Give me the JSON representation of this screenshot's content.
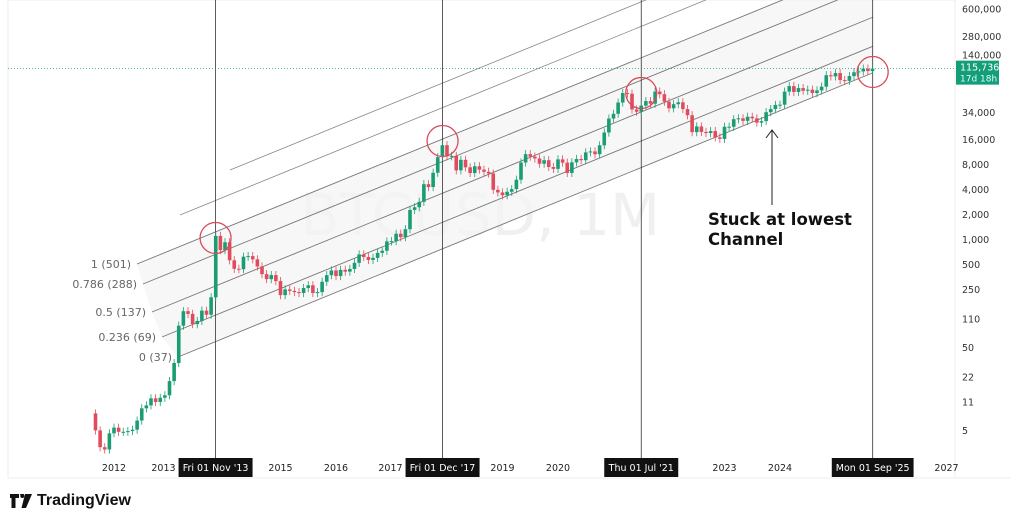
{
  "brand": {
    "name": "TradingView"
  },
  "chart_data": {
    "type": "candlestick",
    "watermark": "BTCUSD, 1M",
    "y_scale": "log",
    "y_ticks": [
      600000,
      280000,
      140000,
      34000,
      16000,
      8000,
      4000,
      2000,
      1000,
      500,
      250,
      110,
      50,
      22,
      11,
      5
    ],
    "y_tick_labels": [
      "600,000",
      "280,000",
      "140,000",
      "34,000",
      "16,000",
      "8,000",
      "4,000",
      "2,000",
      "1,000",
      "500",
      "250",
      "110",
      "50",
      "22",
      "11",
      "5"
    ],
    "x_ticks": [
      {
        "year": 2012,
        "label": "2012"
      },
      {
        "year": 2013,
        "label": "2013"
      },
      {
        "year": 2015,
        "label": "2015"
      },
      {
        "year": 2016,
        "label": "2016"
      },
      {
        "year": 2017,
        "label": "2017"
      },
      {
        "year": 2019,
        "label": "2019"
      },
      {
        "year": 2020,
        "label": "2020"
      },
      {
        "year": 2023,
        "label": "2023"
      },
      {
        "year": 2024,
        "label": "2024"
      },
      {
        "year": 2027,
        "label": "2027"
      }
    ],
    "start_month": "2011-09",
    "monthly_close": [
      5.1,
      3.2,
      3.0,
      4.7,
      5.5,
      4.9,
      4.9,
      5.0,
      5.2,
      6.7,
      9.4,
      10.2,
      12.4,
      11.2,
      12.6,
      13.5,
      20,
      33,
      93,
      139,
      129,
      97,
      106,
      141,
      126,
      204,
      1120,
      755,
      940,
      570,
      450,
      445,
      630,
      640,
      585,
      480,
      388,
      338,
      378,
      320,
      217,
      254,
      244,
      236,
      230,
      264,
      285,
      230,
      236,
      314,
      377,
      430,
      368,
      437,
      416,
      448,
      531,
      670,
      624,
      575,
      609,
      700,
      742,
      963,
      970,
      1190,
      1080,
      1350,
      2300,
      2480,
      2880,
      4700,
      4340,
      6450,
      9950,
      13850,
      10200,
      10300,
      6900,
      9240,
      7500,
      6400,
      7730,
      7030,
      6630,
      6320,
      4020,
      3740,
      3460,
      3810,
      4100,
      5320,
      8570,
      10800,
      10080,
      9590,
      8290,
      9140,
      7570,
      7190,
      9350,
      8540,
      6420,
      8620,
      9450,
      9140,
      11350,
      11650,
      10780,
      13800,
      19700,
      28990,
      33100,
      45200,
      58800,
      57700,
      37300,
      35000,
      41500,
      47100,
      43800,
      61300,
      57000,
      46300,
      38500,
      43200,
      45500,
      37700,
      31800,
      19900,
      23300,
      20000,
      19400,
      20500,
      17200,
      16500,
      23100,
      23100,
      28500,
      29200,
      27200,
      30500,
      29200,
      25900,
      27000,
      34600,
      37700,
      42300,
      42600,
      61200,
      71300,
      60600,
      67500,
      62700,
      64600,
      58900,
      63300,
      70200,
      96400,
      93400,
      102400,
      84300,
      82500,
      94200,
      104600,
      107100,
      115700,
      108200,
      115736
    ],
    "current_price": {
      "value": "115,736",
      "countdown": "17d 18h"
    },
    "fib_channel": [
      {
        "level": 0,
        "label": "0 (37)"
      },
      {
        "level": 0.236,
        "label": "0.236 (69)"
      },
      {
        "level": 0.5,
        "label": "0.5 (137)"
      },
      {
        "level": 0.786,
        "label": "0.786 (288)"
      },
      {
        "level": 1,
        "label": "1 (501)"
      }
    ],
    "markers": [
      {
        "date": 2013.83,
        "label": "Fri 01 Nov '13"
      },
      {
        "date": 2017.92,
        "label": "Fri 01 Dec '17"
      },
      {
        "date": 2021.5,
        "label": "Thu 01 Jul '21"
      },
      {
        "date": 2025.67,
        "label": "Mon 01 Sep '25"
      }
    ],
    "annotation": {
      "line1": "Stuck at lowest",
      "line2": "Channel"
    },
    "colors": {
      "up": "#1a9d74",
      "down": "#e04c5c",
      "circle": "#d94a5a",
      "badge": "#149e78"
    }
  }
}
